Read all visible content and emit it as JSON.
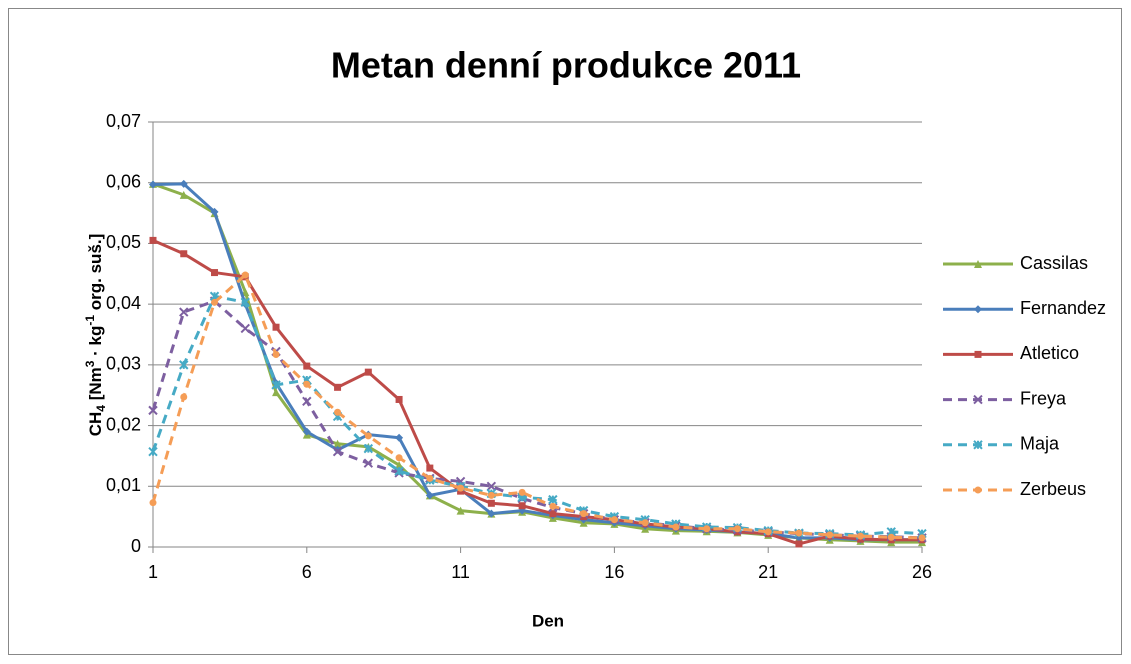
{
  "chart_data": {
    "type": "line",
    "title": "Metan denní produkce 2011",
    "x_label": "Den",
    "y_label_parts": [
      "CH",
      "4",
      " [Nm",
      "3",
      " · kg",
      "-1",
      " org. suš.]"
    ],
    "x": [
      1,
      2,
      3,
      4,
      5,
      6,
      7,
      8,
      9,
      10,
      11,
      12,
      13,
      14,
      15,
      16,
      17,
      18,
      19,
      20,
      21,
      22,
      23,
      24,
      25,
      26
    ],
    "xlim": [
      1,
      26
    ],
    "xticks": [
      1,
      6,
      11,
      16,
      21,
      26
    ],
    "ylim": [
      0,
      0.07
    ],
    "yticks": [
      0,
      {
        "value": 0.01,
        "label": "0,01"
      },
      {
        "value": 0.02,
        "label": "0,02"
      },
      {
        "value": 0.03,
        "label": "0,03"
      },
      {
        "value": 0.04,
        "label": "0,04"
      },
      {
        "value": 0.05,
        "label": "0,05"
      },
      {
        "value": 0.06,
        "label": "0,06"
      },
      {
        "value": 0.07,
        "label": "0,07"
      }
    ],
    "grid": true,
    "legend": "right",
    "series": [
      {
        "name": "Cassilas",
        "color": "#8db04b",
        "marker": "triangle",
        "dash": false,
        "values": [
          0.0598,
          0.058,
          0.055,
          0.042,
          0.0255,
          0.0185,
          0.017,
          0.0165,
          0.0135,
          0.0085,
          0.006,
          0.0055,
          0.0058,
          0.0048,
          0.004,
          0.0038,
          0.003,
          0.0027,
          0.0026,
          0.0024,
          0.002,
          0.0015,
          0.0012,
          0.001,
          0.0008,
          0.0008
        ]
      },
      {
        "name": "Fernandez",
        "color": "#4a7ebb",
        "marker": "diamond",
        "dash": false,
        "values": [
          0.0597,
          0.0598,
          0.0552,
          0.04,
          0.027,
          0.019,
          0.016,
          0.0185,
          0.018,
          0.0085,
          0.0095,
          0.0055,
          0.006,
          0.0052,
          0.0045,
          0.004,
          0.0035,
          0.003,
          0.0028,
          0.0025,
          0.0022,
          0.0015,
          0.0015,
          0.0012,
          0.0012,
          0.0012
        ]
      },
      {
        "name": "Atletico",
        "color": "#be4b48",
        "marker": "square",
        "dash": false,
        "values": [
          0.0505,
          0.0483,
          0.0452,
          0.0445,
          0.0362,
          0.0298,
          0.0263,
          0.0288,
          0.0243,
          0.013,
          0.0092,
          0.0072,
          0.0068,
          0.0055,
          0.005,
          0.0045,
          0.0038,
          0.0033,
          0.003,
          0.0025,
          0.0022,
          0.0005,
          0.0018,
          0.0013,
          0.0012,
          0.0012
        ]
      },
      {
        "name": "Freya",
        "color": "#7d5fa0",
        "marker": "x",
        "dash": true,
        "values": [
          0.0225,
          0.0387,
          0.0405,
          0.036,
          0.0322,
          0.024,
          0.0157,
          0.0138,
          0.0122,
          0.0113,
          0.0108,
          0.01,
          0.008,
          0.0065,
          0.0055,
          0.0045,
          0.004,
          0.0035,
          0.003,
          0.0028,
          0.0025,
          0.0022,
          0.002,
          0.0018,
          0.0017,
          0.0015
        ]
      },
      {
        "name": "Maja",
        "color": "#46aac5",
        "marker": "star",
        "dash": true,
        "values": [
          0.0157,
          0.03,
          0.0413,
          0.0403,
          0.0267,
          0.0275,
          0.0215,
          0.0162,
          0.0125,
          0.011,
          0.01,
          0.0088,
          0.0082,
          0.0078,
          0.006,
          0.005,
          0.0045,
          0.0038,
          0.0033,
          0.0032,
          0.0027,
          0.0023,
          0.0022,
          0.002,
          0.0025,
          0.0022
        ]
      },
      {
        "name": "Zerbeus",
        "color": "#f59d56",
        "marker": "circle",
        "dash": true,
        "values": [
          0.0073,
          0.0247,
          0.0403,
          0.0448,
          0.0317,
          0.0268,
          0.0222,
          0.0183,
          0.0147,
          0.0113,
          0.0097,
          0.0085,
          0.009,
          0.0067,
          0.0055,
          0.0045,
          0.004,
          0.0033,
          0.003,
          0.003,
          0.0025,
          0.0023,
          0.002,
          0.0018,
          0.0016,
          0.0015
        ]
      }
    ]
  }
}
